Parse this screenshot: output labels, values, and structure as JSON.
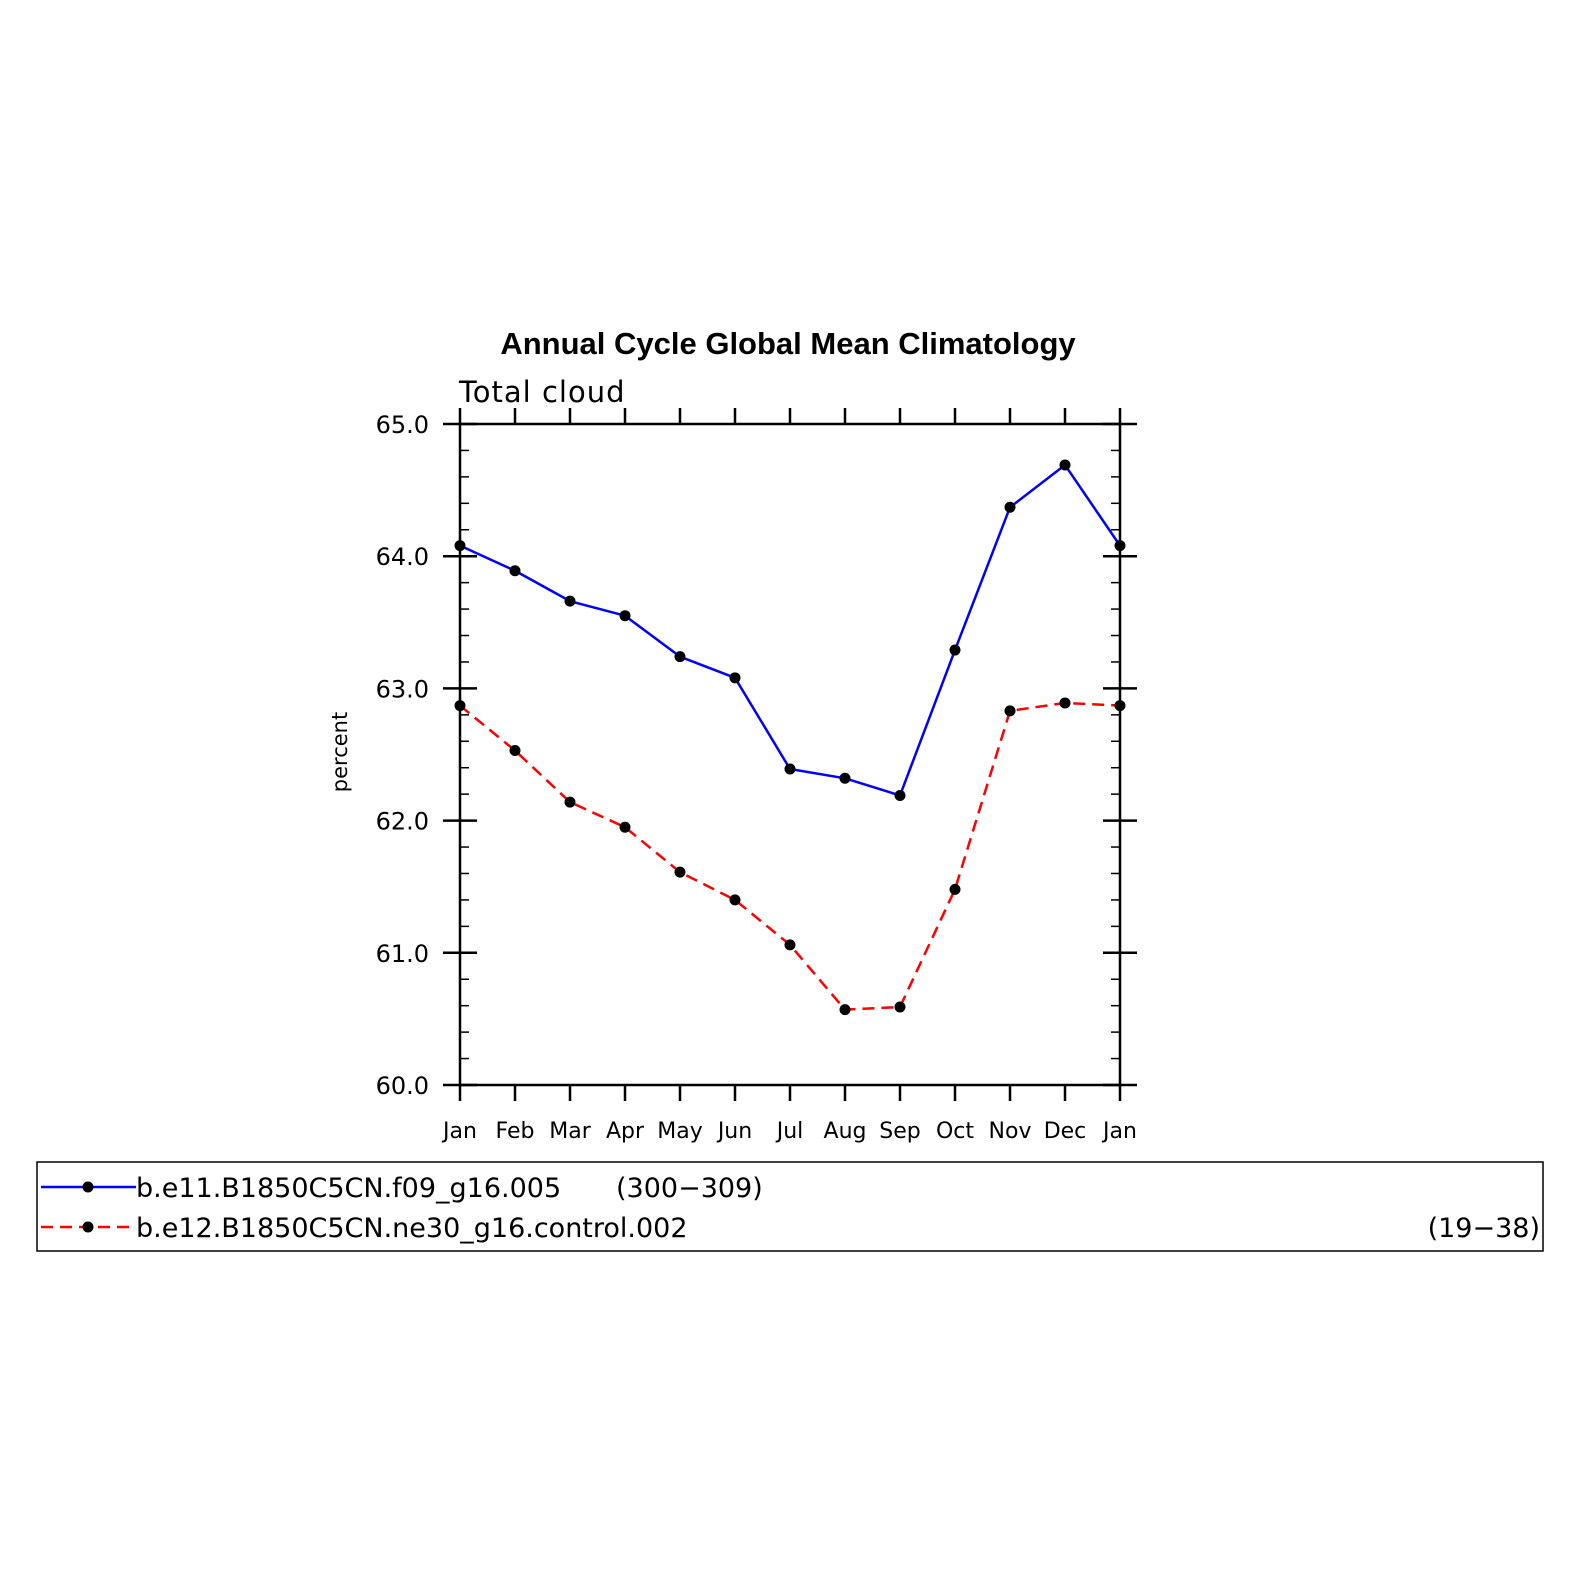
{
  "chart_data": {
    "type": "line",
    "title": "Annual Cycle Global Mean Climatology",
    "subtitle": "Total cloud",
    "ylabel": "percent",
    "xlabel": "",
    "categories": [
      "Jan",
      "Feb",
      "Mar",
      "Apr",
      "May",
      "Jun",
      "Jul",
      "Aug",
      "Sep",
      "Oct",
      "Nov",
      "Dec",
      "Jan"
    ],
    "ylim": [
      60.0,
      65.0
    ],
    "yticks": [
      "60.0",
      "61.0",
      "62.0",
      "63.0",
      "64.0",
      "65.0"
    ],
    "grid": false,
    "legend_position": "bottom",
    "series": [
      {
        "name": "b.e11.B1850C5CN.f09_g16.005",
        "period": "(300−309)",
        "color": "#0000ff",
        "line_style": "solid",
        "values": [
          64.08,
          63.89,
          63.66,
          63.55,
          63.24,
          63.08,
          62.39,
          62.32,
          62.19,
          63.29,
          64.37,
          64.69,
          64.08
        ]
      },
      {
        "name": "b.e12.B1850C5CN.ne30_g16.control.002",
        "period": "(19−38)",
        "color": "#ff0000",
        "line_style": "dashed",
        "values": [
          62.87,
          62.53,
          62.14,
          61.95,
          61.61,
          61.4,
          61.06,
          60.57,
          60.59,
          61.48,
          62.83,
          62.89,
          62.87
        ]
      }
    ]
  }
}
